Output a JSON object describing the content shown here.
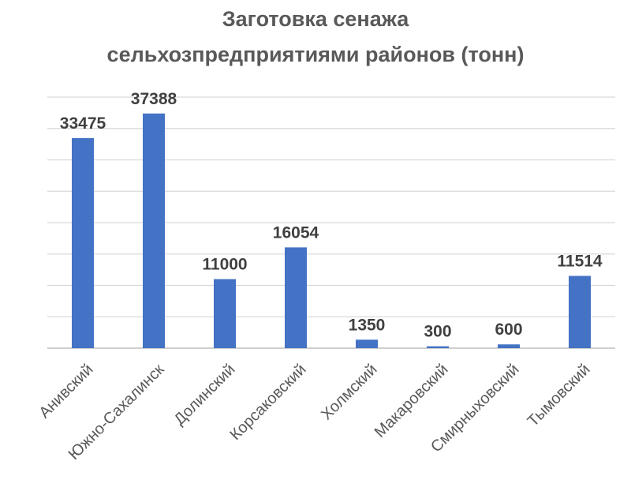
{
  "chart_data": {
    "type": "bar",
    "title_lines": [
      "Заготовка сенажа",
      "сельхозпредприятиями районов (тонн)"
    ],
    "categories": [
      "Анивский",
      "Южно-Сахалинск",
      "Долинский",
      "Корсаковский",
      "Холмский",
      "Макаровский",
      "Смирныховский",
      "Тымовский"
    ],
    "values": [
      33475,
      37388,
      11000,
      16054,
      1350,
      300,
      600,
      11514
    ],
    "data_labels": [
      "33475",
      "37388",
      "11000",
      "16054",
      "1350",
      "300",
      "600",
      "11514"
    ],
    "ylim": [
      0,
      40000
    ],
    "y_gridline_step": 5000,
    "grid": true,
    "legend": "none",
    "bar_color": "#4472c4"
  }
}
